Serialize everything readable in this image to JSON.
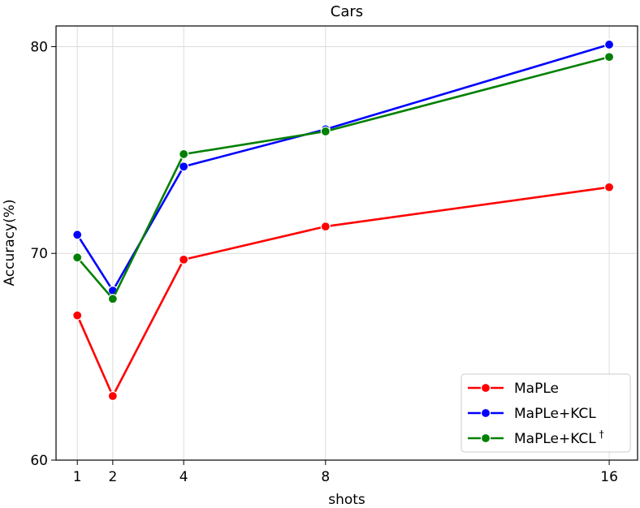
{
  "chart_data": {
    "type": "line",
    "title": "Cars",
    "xlabel": "shots",
    "ylabel": "Accuracy(%)",
    "x": [
      1,
      2,
      4,
      8,
      16
    ],
    "x_ticks": [
      "1",
      "2",
      "4",
      "8",
      "16"
    ],
    "y_ticks": [
      "60",
      "70",
      "80"
    ],
    "xlim": [
      0.4,
      16.8
    ],
    "ylim": [
      60,
      81
    ],
    "grid": true,
    "legend_position": "lower-right",
    "series": [
      {
        "name": "MaPLe",
        "legend_label": "MaPLe",
        "color": "#ff0000",
        "values": [
          67.0,
          63.1,
          69.7,
          71.3,
          73.2
        ]
      },
      {
        "name": "MaPLe+KCL",
        "legend_label": "MaPLe+KCL",
        "color": "#0000ff",
        "values": [
          70.9,
          68.2,
          74.2,
          76.0,
          80.1
        ]
      },
      {
        "name": "MaPLe+KCL†",
        "legend_label": "MaPLe+KCL",
        "legend_sup": "†",
        "color": "#008000",
        "values": [
          69.8,
          67.8,
          74.8,
          75.9,
          79.5
        ]
      }
    ]
  }
}
